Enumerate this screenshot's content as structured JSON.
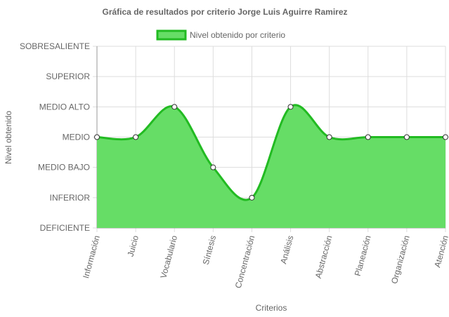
{
  "chart_data": {
    "type": "area",
    "title": "Gráfica de resultados por criterio Jorge Luis Aguirre Ramirez",
    "xlabel": "Criterios",
    "ylabel": "Nivel obtenido",
    "y_levels": [
      "DEFICIENTE",
      "INFERIOR",
      "MEDIO BAJO",
      "MEDIO",
      "MEDIO ALTO",
      "SUPERIOR",
      "SOBRESALIENTE"
    ],
    "ylim": [
      0,
      6
    ],
    "categories": [
      "Información",
      "Juicio",
      "Vocabulario",
      "Síntesis",
      "Concentración",
      "Análisis",
      "Abstracción",
      "Planeación",
      "Organización",
      "Atención"
    ],
    "series": [
      {
        "name": "Nivel obtenido por criterio",
        "values": [
          3,
          3,
          4,
          2,
          1,
          4,
          3,
          3,
          3,
          3
        ]
      }
    ],
    "legend_position": "top",
    "grid": true,
    "colors": {
      "fill": "#66dd66",
      "line": "#22bb22",
      "point_fill": "#ffffff",
      "point_stroke": "#333333",
      "grid": "#dddddd",
      "axis": "#999999"
    }
  }
}
